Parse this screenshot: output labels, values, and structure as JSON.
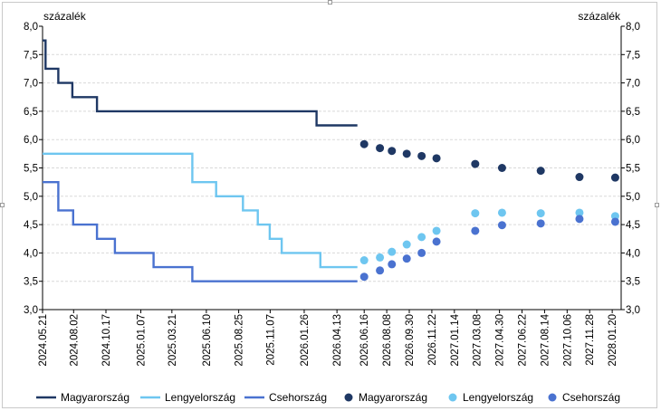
{
  "chart_data": {
    "type": "line",
    "ylabel_left": "százalék",
    "ylabel_right": "százalék",
    "ylim": [
      3.0,
      8.0
    ],
    "yticks": [
      "3,0",
      "3,5",
      "4,0",
      "4,5",
      "5,0",
      "5,5",
      "6,0",
      "6,5",
      "7,0",
      "7,5",
      "8,0"
    ],
    "x_tick_labels": [
      "2024.05.21",
      "2024.08.02",
      "2024.10.17",
      "2025.01.07",
      "2025.03.21",
      "2025.06.10",
      "2025.08.25",
      "2025.11.07",
      "2026.01.26",
      "2026.04.13",
      "2026.06.16",
      "2026.08.08",
      "2026.09.30",
      "2026.11.22",
      "2027.01.14",
      "2027.03.08",
      "2027.04.30",
      "2027.06.22",
      "2027.08.14",
      "2027.10.06",
      "2027.11.28",
      "2028.01.20"
    ],
    "grid": "horizontal dashed",
    "legend_position": "bottom",
    "series": [
      {
        "name": "Magyarország",
        "kind": "step-line",
        "color": "#1f3864",
        "points": [
          [
            "2024.05.21",
            7.75
          ],
          [
            "2024.05.28",
            7.25
          ],
          [
            "2024.06.27",
            7.0
          ],
          [
            "2024.07.30",
            6.75
          ],
          [
            "2024.09.26",
            6.5
          ],
          [
            "2026.02.24",
            6.25
          ],
          [
            "2026.05.31",
            6.25
          ]
        ]
      },
      {
        "name": "Lengyelország",
        "kind": "step-line",
        "color": "#6ec6f0",
        "points": [
          [
            "2024.05.21",
            5.75
          ],
          [
            "2025.05.08",
            5.25
          ],
          [
            "2025.07.03",
            5.0
          ],
          [
            "2025.09.04",
            4.75
          ],
          [
            "2025.10.09",
            4.5
          ],
          [
            "2025.11.06",
            4.25
          ],
          [
            "2025.12.04",
            4.0
          ],
          [
            "2026.03.05",
            3.75
          ],
          [
            "2026.05.31",
            3.75
          ]
        ]
      },
      {
        "name": "Csehország",
        "kind": "step-line",
        "color": "#4a72d0",
        "points": [
          [
            "2024.05.21",
            5.25
          ],
          [
            "2024.06.27",
            4.75
          ],
          [
            "2024.08.01",
            4.5
          ],
          [
            "2024.09.26",
            4.25
          ],
          [
            "2024.11.07",
            4.0
          ],
          [
            "2025.02.06",
            3.75
          ],
          [
            "2025.05.08",
            3.5
          ],
          [
            "2026.05.31",
            3.5
          ]
        ]
      },
      {
        "name": "Magyarország",
        "kind": "markers",
        "color": "#1f3864",
        "points": [
          [
            "2026.06.16",
            5.92
          ],
          [
            "2026.07.23",
            5.85
          ],
          [
            "2026.08.20",
            5.8
          ],
          [
            "2026.09.24",
            5.75
          ],
          [
            "2026.10.29",
            5.71
          ],
          [
            "2026.12.03",
            5.67
          ],
          [
            "2027.03.04",
            5.57
          ],
          [
            "2027.05.06",
            5.5
          ],
          [
            "2027.08.05",
            5.45
          ],
          [
            "2027.11.04",
            5.34
          ],
          [
            "2028.01.27",
            5.33
          ]
        ]
      },
      {
        "name": "Lengyelország",
        "kind": "markers",
        "color": "#6ec6f0",
        "points": [
          [
            "2026.06.16",
            3.87
          ],
          [
            "2026.07.23",
            3.92
          ],
          [
            "2026.08.20",
            4.02
          ],
          [
            "2026.09.24",
            4.15
          ],
          [
            "2026.10.29",
            4.28
          ],
          [
            "2026.12.03",
            4.39
          ],
          [
            "2027.03.04",
            4.7
          ],
          [
            "2027.05.06",
            4.71
          ],
          [
            "2027.08.05",
            4.7
          ],
          [
            "2027.11.04",
            4.71
          ],
          [
            "2028.01.27",
            4.65
          ]
        ]
      },
      {
        "name": "Csehország",
        "kind": "markers",
        "color": "#4a72d0",
        "points": [
          [
            "2026.06.16",
            3.58
          ],
          [
            "2026.07.23",
            3.69
          ],
          [
            "2026.08.20",
            3.8
          ],
          [
            "2026.09.24",
            3.9
          ],
          [
            "2026.10.29",
            4.0
          ],
          [
            "2026.12.03",
            4.2
          ],
          [
            "2027.03.04",
            4.39
          ],
          [
            "2027.05.06",
            4.49
          ],
          [
            "2027.08.05",
            4.52
          ],
          [
            "2027.11.04",
            4.6
          ],
          [
            "2028.01.27",
            4.55
          ]
        ]
      }
    ]
  }
}
